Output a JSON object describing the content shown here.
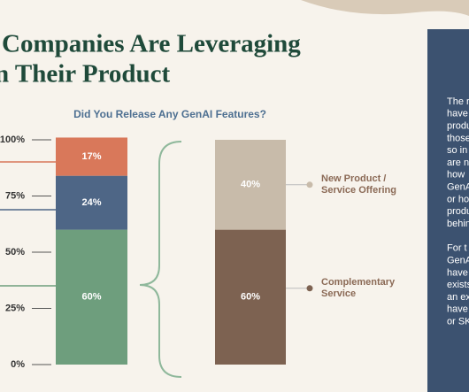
{
  "header": {
    "title_lines": [
      "Companies Are Leveraging",
      "n Their Product"
    ]
  },
  "chart_data": [
    {
      "type": "stacked-bar",
      "title": "Did You Release Any GenAI Features?",
      "ylim": [
        0,
        100
      ],
      "yticks": [
        {
          "value": 0,
          "label": "0%"
        },
        {
          "value": 25,
          "label": "25%"
        },
        {
          "value": 50,
          "label": "50%"
        },
        {
          "value": 75,
          "label": "75%"
        },
        {
          "value": 100,
          "label": "100%"
        }
      ],
      "series": [
        {
          "color": "#6e9e7d",
          "values": [
            60
          ],
          "value_labels": [
            "60%"
          ]
        },
        {
          "color": "#4e6686",
          "values": [
            24
          ],
          "value_labels": [
            "24%"
          ]
        },
        {
          "color": "#d9785a",
          "values": [
            17
          ],
          "value_labels": [
            "17%"
          ]
        }
      ]
    },
    {
      "type": "stacked-bar",
      "series": [
        {
          "name": "Complementary Service",
          "color": "#7d6251",
          "values": [
            60
          ],
          "value_labels": [
            "60%"
          ]
        },
        {
          "name": "New Product / Service Offering",
          "color": "#c8bbaa",
          "values": [
            40
          ],
          "value_labels": [
            "40%"
          ]
        }
      ]
    }
  ],
  "sidebar": {
    "paragraphs": [
      [
        "The r",
        "have",
        "produ",
        "those",
        "so in",
        "are n",
        "how",
        "GenA",
        "or ho",
        "produ",
        "behin"
      ],
      [
        "For t",
        "GenA",
        "have",
        "exists",
        "an ex",
        "have",
        "or SK"
      ]
    ]
  }
}
